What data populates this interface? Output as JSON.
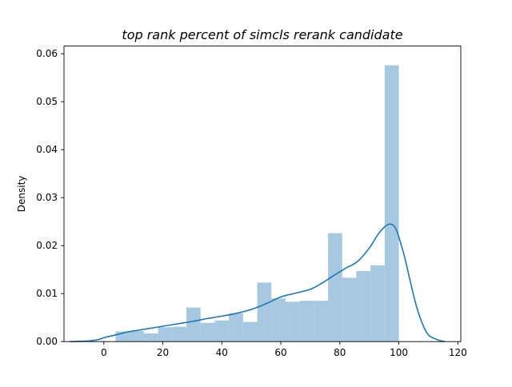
{
  "chart_data": {
    "type": "histogram",
    "title": "top rank percent of simcls rerank candidate",
    "xlabel": "",
    "ylabel": "Density",
    "xlim": [
      -13.5,
      121
    ],
    "ylim": [
      0,
      0.0616
    ],
    "x_ticks": [
      0,
      20,
      40,
      60,
      80,
      100,
      120
    ],
    "y_ticks": [
      0.0,
      0.01,
      0.02,
      0.03,
      0.04,
      0.05,
      0.06
    ],
    "x_tick_labels": [
      "0",
      "20",
      "40",
      "60",
      "80",
      "100",
      "120"
    ],
    "y_tick_labels": [
      "0.00",
      "0.01",
      "0.02",
      "0.03",
      "0.04",
      "0.05",
      "0.06"
    ],
    "grid": false,
    "histogram": {
      "bin_edges": [
        4,
        8.8,
        13.6,
        18.4,
        23.2,
        28,
        32.8,
        37.6,
        42.4,
        47.2,
        52,
        56.8,
        61.6,
        66.4,
        71.2,
        76,
        80.8,
        85.6,
        90.4,
        95.2,
        100
      ],
      "densities": [
        0.0021,
        0.0022,
        0.0017,
        0.003,
        0.0031,
        0.0071,
        0.0039,
        0.0044,
        0.0059,
        0.0041,
        0.0123,
        0.009,
        0.0083,
        0.0085,
        0.0085,
        0.0226,
        0.0133,
        0.0147,
        0.0159,
        0.0576
      ]
    },
    "kde": {
      "x": [
        -11.5,
        -6,
        -2,
        0,
        4,
        8,
        12,
        16,
        20,
        25,
        30,
        35,
        40,
        45,
        50,
        55,
        60,
        65,
        70,
        74,
        78,
        82,
        86,
        90,
        93,
        95,
        96,
        97,
        98,
        99,
        100,
        102,
        104,
        106,
        108,
        110,
        113,
        115.5
      ],
      "y": [
        0.0,
        0.0001,
        0.0004,
        0.0008,
        0.0014,
        0.002,
        0.0024,
        0.0028,
        0.0032,
        0.0037,
        0.0042,
        0.0048,
        0.0053,
        0.0059,
        0.0067,
        0.0079,
        0.0093,
        0.0101,
        0.0109,
        0.0122,
        0.0138,
        0.0153,
        0.0167,
        0.0195,
        0.0224,
        0.0238,
        0.0243,
        0.0245,
        0.0243,
        0.0235,
        0.0218,
        0.0175,
        0.0122,
        0.0073,
        0.0037,
        0.0014,
        0.0004,
        0.0
      ]
    },
    "colors": {
      "bars": "#a6c8e0",
      "line": "#1f77b4",
      "axes": "#000000"
    }
  }
}
